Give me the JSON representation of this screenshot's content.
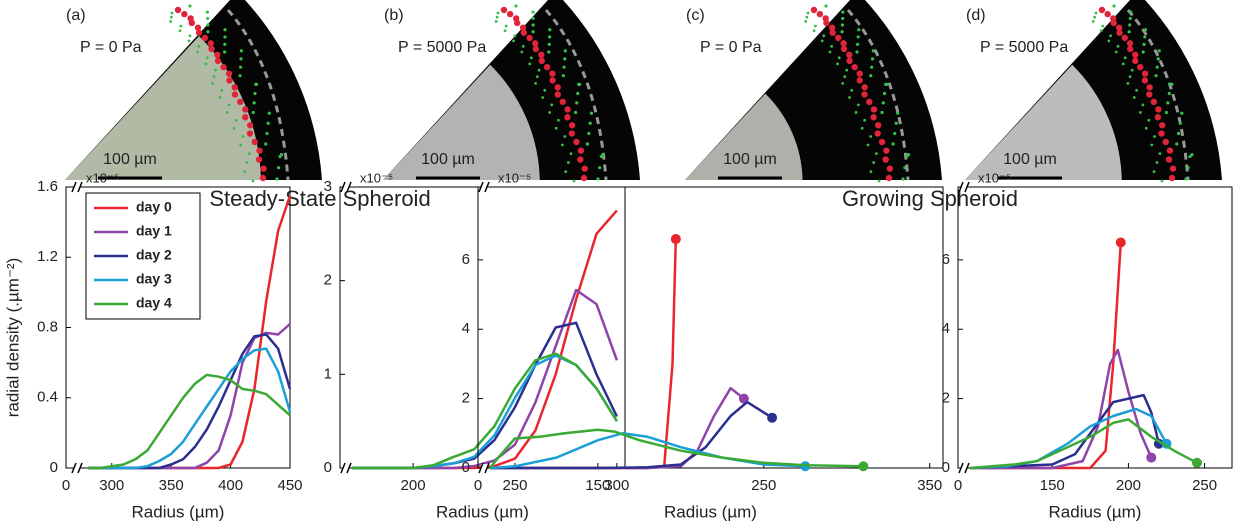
{
  "panels": [
    {
      "label": "(a)",
      "pressure": "P = 0 Pa",
      "scale_bar": "100 µm"
    },
    {
      "label": "(b)",
      "pressure": "P = 5000 Pa",
      "scale_bar": "100 µm"
    },
    {
      "label": "(c)",
      "pressure": "P = 0 Pa",
      "scale_bar": "100 µm"
    },
    {
      "label": "(d)",
      "pressure": "P = 5000 Pa",
      "scale_bar": "100 µm"
    }
  ],
  "section_titles": [
    "Steady-State Spheroid",
    "Growing Spheroid"
  ],
  "chart_data": [
    {
      "type": "line",
      "x_label": "Radius (µm)",
      "y_label": "radial density (.µm⁻²)",
      "multiplier": "x10⁻⁵",
      "xlim": [
        0,
        450
      ],
      "x_break_to": 280,
      "xticks": [
        0,
        300,
        350,
        400,
        450
      ],
      "ylim": [
        0,
        1.6
      ],
      "yticks": [
        0,
        0.4,
        0.8,
        1.2,
        1.6
      ],
      "legend": "upper left",
      "x": [
        280,
        290,
        300,
        310,
        320,
        330,
        340,
        350,
        360,
        370,
        380,
        390,
        400,
        410,
        420,
        430,
        440,
        450
      ],
      "series": [
        {
          "name": "day 0",
          "color": "#e8262b",
          "values": [
            0,
            0,
            0,
            0,
            0,
            0,
            0,
            0,
            0,
            0,
            0,
            0,
            0.02,
            0.15,
            0.45,
            0.95,
            1.35,
            1.55
          ]
        },
        {
          "name": "day 1",
          "color": "#8e44a8",
          "values": [
            0,
            0,
            0,
            0,
            0,
            0,
            0,
            0,
            0,
            0,
            0.03,
            0.1,
            0.3,
            0.6,
            0.74,
            0.77,
            0.76,
            0.82
          ]
        },
        {
          "name": "day 2",
          "color": "#2b2f8f",
          "values": [
            0,
            0,
            0,
            0,
            0,
            0,
            0,
            0.02,
            0.05,
            0.12,
            0.22,
            0.35,
            0.5,
            0.65,
            0.75,
            0.76,
            0.68,
            0.45
          ]
        },
        {
          "name": "day 3",
          "color": "#1a9fd6",
          "values": [
            0,
            0,
            0,
            0,
            0,
            0.01,
            0.04,
            0.08,
            0.15,
            0.25,
            0.35,
            0.45,
            0.55,
            0.62,
            0.67,
            0.68,
            0.55,
            0.32
          ]
        },
        {
          "name": "day 4",
          "color": "#3aaa35",
          "values": [
            0,
            0,
            0.01,
            0.02,
            0.05,
            0.1,
            0.2,
            0.3,
            0.4,
            0.48,
            0.53,
            0.52,
            0.5,
            0.45,
            0.44,
            0.42,
            0.36,
            0.3
          ]
        }
      ]
    },
    {
      "type": "line",
      "x_label": "Radius (µm)",
      "multiplier": "x10⁻⁵",
      "xlim": [
        0,
        304
      ],
      "x_break_to": 170,
      "xticks": [
        200,
        250,
        300
      ],
      "ylim": [
        0,
        3
      ],
      "yticks": [
        0,
        1,
        2,
        3
      ],
      "x": [
        170,
        180,
        190,
        200,
        210,
        220,
        230,
        240,
        250,
        260,
        270,
        280,
        290,
        300
      ],
      "series": [
        {
          "name": "day 0",
          "color": "#e8262b",
          "values": [
            0,
            0,
            0,
            0,
            0,
            0,
            0,
            0.02,
            0.1,
            0.4,
            1.0,
            1.8,
            2.5,
            2.75
          ]
        },
        {
          "name": "day 1",
          "color": "#8e44a8",
          "values": [
            0,
            0,
            0,
            0,
            0,
            0,
            0.02,
            0.08,
            0.25,
            0.7,
            1.3,
            1.9,
            1.75,
            1.15
          ]
        },
        {
          "name": "day 2",
          "color": "#2b2f8f",
          "values": [
            0,
            0,
            0,
            0,
            0.02,
            0.05,
            0.1,
            0.3,
            0.65,
            1.1,
            1.5,
            1.55,
            1.0,
            0.55
          ]
        },
        {
          "name": "day 3",
          "color": "#1a9fd6",
          "values": [
            0,
            0,
            0,
            0,
            0.02,
            0.05,
            0.12,
            0.35,
            0.75,
            1.1,
            1.2,
            1.1,
            0.85,
            0.5
          ]
        },
        {
          "name": "day 4",
          "color": "#3aaa35",
          "values": [
            0,
            0,
            0,
            0,
            0.03,
            0.12,
            0.2,
            0.45,
            0.85,
            1.15,
            1.22,
            1.1,
            0.85,
            0.5
          ]
        }
      ]
    },
    {
      "type": "line",
      "x_label": "Radius (µm)",
      "multiplier": "x10⁻⁵",
      "end_markers": true,
      "xlim": [
        0,
        358
      ],
      "x_break_to": 85,
      "xticks": [
        0,
        150,
        250,
        350
      ],
      "ylim": [
        0,
        8.1
      ],
      "yticks": [
        0,
        2,
        4,
        6
      ],
      "series": [
        {
          "name": "day 0",
          "color": "#e8262b",
          "x": [
            85,
            150,
            180,
            190,
            195,
            197
          ],
          "values": [
            0,
            0,
            0,
            0.05,
            3,
            6.6
          ]
        },
        {
          "name": "day 1",
          "color": "#8e44a8",
          "x": [
            85,
            150,
            180,
            200,
            210,
            220,
            230,
            238
          ],
          "values": [
            0,
            0,
            0,
            0.05,
            0.5,
            1.5,
            2.3,
            2.0
          ]
        },
        {
          "name": "day 2",
          "color": "#2b2f8f",
          "x": [
            85,
            150,
            180,
            200,
            215,
            230,
            240,
            255
          ],
          "values": [
            0,
            0,
            0.02,
            0.1,
            0.6,
            1.5,
            1.9,
            1.45
          ]
        },
        {
          "name": "day 3",
          "color": "#1a9fd6",
          "x": [
            85,
            100,
            125,
            150,
            165,
            180,
            200,
            225,
            250,
            275
          ],
          "values": [
            0,
            0.05,
            0.3,
            0.8,
            1.0,
            0.9,
            0.6,
            0.3,
            0.1,
            0.05
          ]
        },
        {
          "name": "day 4",
          "color": "#3aaa35",
          "x": [
            85,
            90,
            100,
            115,
            130,
            150,
            160,
            175,
            200,
            225,
            250,
            275,
            310
          ],
          "values": [
            0,
            0.3,
            0.85,
            0.9,
            1.0,
            1.1,
            1.05,
            0.8,
            0.5,
            0.3,
            0.15,
            0.08,
            0.05
          ]
        }
      ]
    },
    {
      "type": "line",
      "x_label": "Radius (µm)",
      "multiplier": "x10⁻⁵",
      "end_markers": true,
      "xlim": [
        0,
        268
      ],
      "x_break_to": 96,
      "xticks": [
        0,
        150,
        200,
        250
      ],
      "ylim": [
        0,
        8.1
      ],
      "yticks": [
        0,
        2,
        4,
        6
      ],
      "series": [
        {
          "name": "day 0",
          "color": "#e8262b",
          "x": [
            96,
            175,
            185,
            190,
            195
          ],
          "values": [
            0,
            0,
            0.5,
            3,
            6.5
          ]
        },
        {
          "name": "day 1",
          "color": "#8e44a8",
          "x": [
            96,
            150,
            170,
            180,
            188,
            193,
            200,
            208,
            215
          ],
          "values": [
            0,
            0,
            0.2,
            1.2,
            3.0,
            3.4,
            2.2,
            1.0,
            0.3
          ]
        },
        {
          "name": "day 2",
          "color": "#2b2f8f",
          "x": [
            96,
            150,
            165,
            180,
            190,
            200,
            210,
            215,
            220
          ],
          "values": [
            0,
            0.1,
            0.4,
            1.3,
            1.9,
            2.0,
            2.1,
            1.6,
            0.7
          ]
        },
        {
          "name": "day 3",
          "color": "#1a9fd6",
          "x": [
            96,
            120,
            140,
            160,
            175,
            190,
            205,
            215,
            225
          ],
          "values": [
            0,
            0.05,
            0.2,
            0.7,
            1.2,
            1.5,
            1.7,
            1.5,
            0.7
          ]
        },
        {
          "name": "day 4",
          "color": "#3aaa35",
          "x": [
            96,
            125,
            140,
            160,
            175,
            190,
            200,
            215,
            230,
            245
          ],
          "values": [
            0,
            0.1,
            0.2,
            0.6,
            0.9,
            1.3,
            1.4,
            0.9,
            0.5,
            0.15
          ]
        }
      ]
    }
  ]
}
